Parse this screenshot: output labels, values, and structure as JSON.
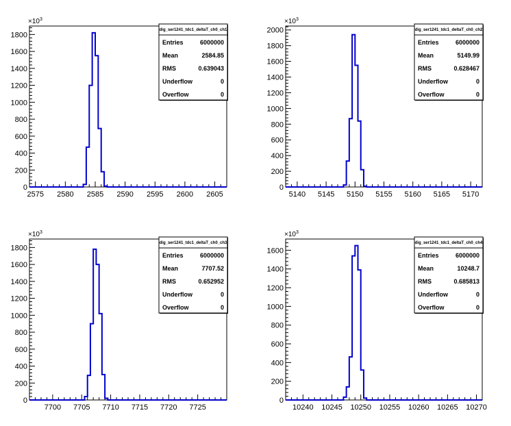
{
  "chart_data": [
    {
      "type": "histogram",
      "stats_title": "dig_ser1241_tdc1_deltaT_ch0_ch1",
      "y_multiplier": "×10",
      "y_multiplier_exp": "3",
      "xlim": [
        2574,
        2607
      ],
      "ylim": [
        0,
        1900
      ],
      "x_ticks": [
        2575,
        2580,
        2585,
        2590,
        2595,
        2600,
        2605
      ],
      "y_ticks": [
        0,
        200,
        400,
        600,
        800,
        1000,
        1200,
        1400,
        1600,
        1800
      ],
      "bin_edges": [
        2582.5,
        2583,
        2583.5,
        2584,
        2584.5,
        2585,
        2585.5,
        2586,
        2586.5,
        2587
      ],
      "values": [
        0,
        30,
        470,
        1200,
        1820,
        1550,
        690,
        180,
        10
      ],
      "stats": [
        {
          "label": "Entries",
          "value": "6000000"
        },
        {
          "label": "Mean",
          "value": "2584.85"
        },
        {
          "label": "RMS",
          "value": "0.639043"
        },
        {
          "label": "Underflow",
          "value": "0"
        },
        {
          "label": "Overflow",
          "value": "0"
        }
      ]
    },
    {
      "type": "histogram",
      "stats_title": "dig_ser1241_tdc1_deltaT_ch0_ch2",
      "y_multiplier": "×10",
      "y_multiplier_exp": "3",
      "xlim": [
        5138,
        5172
      ],
      "ylim": [
        0,
        2050
      ],
      "x_ticks": [
        5140,
        5145,
        5150,
        5155,
        5160,
        5165,
        5170
      ],
      "y_ticks": [
        0,
        200,
        400,
        600,
        800,
        1000,
        1200,
        1400,
        1600,
        1800,
        2000
      ],
      "bin_edges": [
        5147.5,
        5148,
        5148.5,
        5149,
        5149.5,
        5150,
        5150.5,
        5151,
        5151.5,
        5152
      ],
      "values": [
        0,
        25,
        330,
        870,
        1940,
        1550,
        840,
        220,
        10
      ],
      "stats": [
        {
          "label": "Entries",
          "value": "6000000"
        },
        {
          "label": "Mean",
          "value": "5149.99"
        },
        {
          "label": "RMS",
          "value": "0.628467"
        },
        {
          "label": "Underflow",
          "value": "0"
        },
        {
          "label": "Overflow",
          "value": "0"
        }
      ]
    },
    {
      "type": "histogram",
      "stats_title": "dig_ser1241_tdc1_deltaT_ch0_ch3",
      "y_multiplier": "×10",
      "y_multiplier_exp": "3",
      "xlim": [
        7696,
        7730
      ],
      "ylim": [
        0,
        1900
      ],
      "x_ticks": [
        7700,
        7705,
        7710,
        7715,
        7720,
        7725
      ],
      "y_ticks": [
        0,
        200,
        400,
        600,
        800,
        1000,
        1200,
        1400,
        1600,
        1800
      ],
      "bin_edges": [
        7705,
        7705.5,
        7706,
        7706.5,
        7707,
        7707.5,
        7708,
        7708.5,
        7709,
        7709.5
      ],
      "values": [
        0,
        40,
        290,
        900,
        1780,
        1600,
        1020,
        300,
        20
      ],
      "stats": [
        {
          "label": "Entries",
          "value": "6000000"
        },
        {
          "label": "Mean",
          "value": "7707.52"
        },
        {
          "label": "RMS",
          "value": "0.652952"
        },
        {
          "label": "Underflow",
          "value": "0"
        },
        {
          "label": "Overflow",
          "value": "0"
        }
      ]
    },
    {
      "type": "histogram",
      "stats_title": "dig_ser1241_tdc1_deltaT_ch0_ch4",
      "y_multiplier": "×10",
      "y_multiplier_exp": "3",
      "xlim": [
        10237,
        10271
      ],
      "ylim": [
        0,
        1720
      ],
      "x_ticks": [
        10240,
        10245,
        10250,
        10255,
        10260,
        10265,
        10270
      ],
      "y_ticks": [
        0,
        200,
        400,
        600,
        800,
        1000,
        1200,
        1400,
        1600
      ],
      "bin_edges": [
        10246.5,
        10247,
        10247.5,
        10248,
        10248.5,
        10249,
        10249.5,
        10250,
        10250.5,
        10251
      ],
      "values": [
        0,
        30,
        140,
        460,
        1540,
        1650,
        1390,
        320,
        20
      ],
      "stats": [
        {
          "label": "Entries",
          "value": "6000000"
        },
        {
          "label": "Mean",
          "value": "10248.7"
        },
        {
          "label": "RMS",
          "value": "0.685813"
        },
        {
          "label": "Underflow",
          "value": "0"
        },
        {
          "label": "Overflow",
          "value": "0"
        }
      ]
    }
  ]
}
